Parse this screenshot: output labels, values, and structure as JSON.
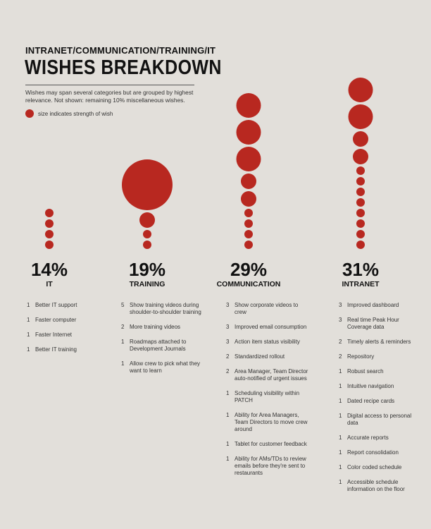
{
  "header": {
    "supertitle": "INTRANET/COMMUNICATION/TRAINING/IT",
    "title": "WISHES BREAKDOWN",
    "subtitle": "Wishes may span several categories but are grouped by highest relevance. Not shown: remaining 10% miscellaneous wishes.",
    "legend": "size indicates strength of wish"
  },
  "colors": {
    "bubble": "#b82820",
    "background": "#e2dfda"
  },
  "chart_data": {
    "type": "bubble-columns",
    "title": "WISHES BREAKDOWN",
    "categories": [
      {
        "name": "IT",
        "percent": "14%",
        "bubbles": [
          1,
          1,
          1,
          1
        ],
        "wishes": [
          {
            "count": 1,
            "text": "Better IT support"
          },
          {
            "count": 1,
            "text": "Faster computer"
          },
          {
            "count": 1,
            "text": "Faster Internet"
          },
          {
            "count": 1,
            "text": "Better IT training"
          }
        ]
      },
      {
        "name": "TRAINING",
        "percent": "19%",
        "bubbles": [
          5,
          2,
          1,
          1
        ],
        "wishes": [
          {
            "count": 5,
            "text": "Show training videos during shoulder-to-shoulder training"
          },
          {
            "count": 2,
            "text": "More training videos"
          },
          {
            "count": 1,
            "text": "Roadmaps attached to Development Journals"
          },
          {
            "count": 1,
            "text": "Allow crew to pick what they want to learn"
          }
        ]
      },
      {
        "name": "COMMUNICATION",
        "percent": "29%",
        "bubbles": [
          3,
          3,
          3,
          2,
          2,
          1,
          1,
          1,
          1
        ],
        "wishes": [
          {
            "count": 3,
            "text": "Show corporate videos to crew"
          },
          {
            "count": 3,
            "text": "Improved email consumption"
          },
          {
            "count": 3,
            "text": "Action item status visibility"
          },
          {
            "count": 2,
            "text": "Standardized rollout"
          },
          {
            "count": 2,
            "text": "Area Manager, Team Director auto-notified of urgent issues"
          },
          {
            "count": 1,
            "text": "Scheduling visibility within PATCH"
          },
          {
            "count": 1,
            "text": "Ability for Area Managers, Team Directors to move crew around"
          },
          {
            "count": 1,
            "text": "Tablet for customer feedback"
          },
          {
            "count": 1,
            "text": "Ability for AMs/TDs to review emails before they're sent to restaurants"
          }
        ]
      },
      {
        "name": "INTRANET",
        "percent": "31%",
        "bubbles": [
          3,
          3,
          2,
          2,
          1,
          1,
          1,
          1,
          1,
          1,
          1,
          1
        ],
        "wishes": [
          {
            "count": 3,
            "text": "Improved dashboard"
          },
          {
            "count": 3,
            "text": "Real time Peak Hour Coverage data"
          },
          {
            "count": 2,
            "text": "Timely alerts & reminders"
          },
          {
            "count": 2,
            "text": "Repository"
          },
          {
            "count": 1,
            "text": "Robust search"
          },
          {
            "count": 1,
            "text": "Intuitive navigation"
          },
          {
            "count": 1,
            "text": "Dated recipe cards"
          },
          {
            "count": 1,
            "text": "Digital access to personal data"
          },
          {
            "count": 1,
            "text": "Accurate reports"
          },
          {
            "count": 1,
            "text": "Report consolidation"
          },
          {
            "count": 1,
            "text": "Color coded schedule"
          },
          {
            "count": 1,
            "text": "Accessible schedule information on the floor"
          }
        ]
      }
    ]
  }
}
